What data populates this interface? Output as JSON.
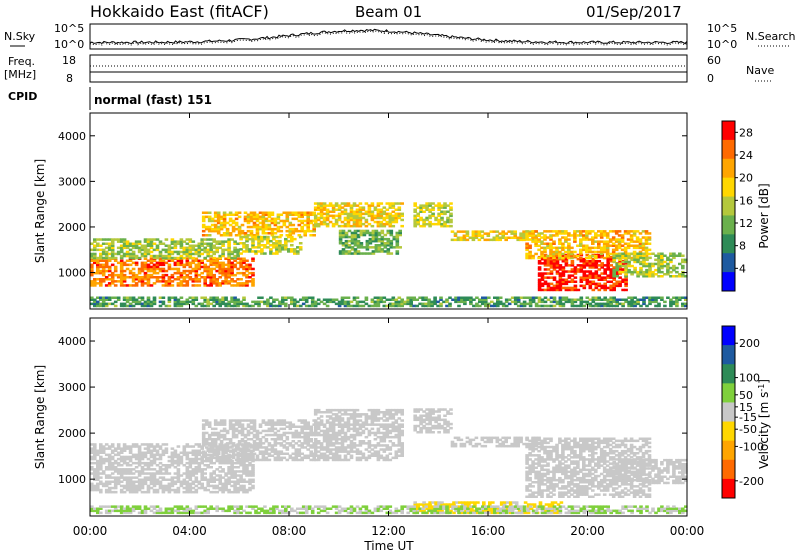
{
  "header": {
    "station": "Hokkaido East (fitACF)",
    "beam": "Beam 01",
    "date": "01/Sep/2017"
  },
  "noise_panel": {
    "left_label": "N.Sky",
    "right_label": "N.Search",
    "left_ticks": [
      "10^5",
      "10^0"
    ],
    "right_ticks": [
      "10^5",
      "10^0"
    ]
  },
  "freq_panel": {
    "left_label": "Freq.",
    "left_unit": "[MHz]",
    "left_ticks": [
      "18",
      "8"
    ],
    "right_label": "Nave",
    "right_ticks": [
      "60",
      "0"
    ]
  },
  "cpid": {
    "label": "CPID",
    "value": "normal (fast) 151"
  },
  "colors": {
    "power_scale": [
      "#0000ff",
      "#1e5aa0",
      "#2e8b57",
      "#6ab04c",
      "#b4c83c",
      "#ffd700",
      "#ffa500",
      "#ff6a00",
      "#ff0000"
    ],
    "velocity_scale": [
      "#ff0000",
      "#ff6a00",
      "#ffa500",
      "#ffd700",
      "#c8c8c8",
      "#7fd03c",
      "#2e8b57",
      "#1e5aa0",
      "#0000ff"
    ]
  },
  "chart_data": [
    {
      "type": "heatmap",
      "name": "power",
      "xlabel": "",
      "ylabel": "Slant Range [km]",
      "ylim": [
        200,
        4500
      ],
      "xlim": [
        "00:00",
        "24:00"
      ],
      "x_ticks": [
        "00:00",
        "04:00",
        "08:00",
        "12:00",
        "16:00",
        "20:00",
        "00:00"
      ],
      "y_ticks": [
        1000,
        2000,
        3000,
        4000
      ],
      "colorbar_label": "Power [dB]",
      "colorbar_ticks": [
        4,
        8,
        12,
        16,
        20,
        24,
        28
      ],
      "colorbar_range": [
        0,
        30
      ],
      "regions": [
        {
          "t0": 0.0,
          "t1": 6.5,
          "r0": 700,
          "r1": 1300,
          "value": 24
        },
        {
          "t0": 0.0,
          "t1": 6.0,
          "r0": 1300,
          "r1": 1750,
          "value": 14
        },
        {
          "t0": 4.5,
          "t1": 9.0,
          "r0": 1800,
          "r1": 2300,
          "value": 20
        },
        {
          "t0": 6.0,
          "t1": 8.5,
          "r0": 1400,
          "r1": 1800,
          "value": 16
        },
        {
          "t0": 9.0,
          "t1": 12.5,
          "r0": 2000,
          "r1": 2500,
          "value": 18
        },
        {
          "t0": 10.0,
          "t1": 12.5,
          "r0": 1400,
          "r1": 1900,
          "value": 12
        },
        {
          "t0": 13.0,
          "t1": 14.5,
          "r0": 2000,
          "r1": 2500,
          "value": 16
        },
        {
          "t0": 14.5,
          "t1": 18.0,
          "r0": 1700,
          "r1": 1900,
          "value": 18
        },
        {
          "t0": 18.0,
          "t1": 21.5,
          "r0": 600,
          "r1": 1400,
          "value": 28
        },
        {
          "t0": 17.5,
          "t1": 22.5,
          "r0": 1300,
          "r1": 1900,
          "value": 20
        },
        {
          "t0": 21.0,
          "t1": 24.0,
          "r0": 900,
          "r1": 1400,
          "value": 14
        },
        {
          "t0": 0.0,
          "t1": 24.0,
          "r0": 250,
          "r1": 450,
          "value": 10
        }
      ]
    },
    {
      "type": "heatmap",
      "name": "velocity",
      "xlabel": "Time UT",
      "ylabel": "Slant Range [km]",
      "ylim": [
        200,
        4500
      ],
      "xlim": [
        "00:00",
        "24:00"
      ],
      "x_ticks": [
        "00:00",
        "04:00",
        "08:00",
        "12:00",
        "16:00",
        "20:00",
        "00:00"
      ],
      "y_ticks": [
        1000,
        2000,
        3000,
        4000
      ],
      "colorbar_label": "Velocity [m s^-1]",
      "colorbar_ticks": [
        200,
        100,
        50,
        15,
        -15,
        -50,
        -100,
        -200
      ],
      "colorbar_range": [
        -250,
        250
      ],
      "regions": [
        {
          "t0": 0.0,
          "t1": 6.5,
          "r0": 700,
          "r1": 1750,
          "value": 0
        },
        {
          "t0": 4.5,
          "t1": 9.0,
          "r0": 1400,
          "r1": 2300,
          "value": 0
        },
        {
          "t0": 9.0,
          "t1": 12.5,
          "r0": 1400,
          "r1": 2500,
          "value": 0
        },
        {
          "t0": 13.0,
          "t1": 14.5,
          "r0": 2000,
          "r1": 2500,
          "value": 0
        },
        {
          "t0": 14.5,
          "t1": 18.0,
          "r0": 1700,
          "r1": 1900,
          "value": 0
        },
        {
          "t0": 17.5,
          "t1": 22.5,
          "r0": 600,
          "r1": 1900,
          "value": 0
        },
        {
          "t0": 21.0,
          "t1": 24.0,
          "r0": 900,
          "r1": 1400,
          "value": 0
        },
        {
          "t0": 13.0,
          "t1": 19.0,
          "r0": 250,
          "r1": 500,
          "value": -40
        },
        {
          "t0": 0.0,
          "t1": 24.0,
          "r0": 250,
          "r1": 400,
          "value": 30
        }
      ]
    }
  ]
}
